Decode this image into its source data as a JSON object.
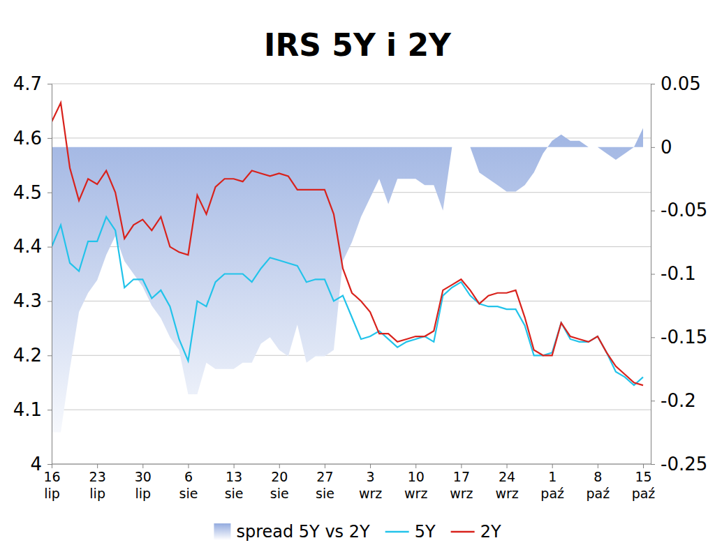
{
  "chart_data": {
    "type": "line",
    "title": "IRS 5Y i 2Y",
    "categories": [
      "16 lip",
      null,
      null,
      null,
      null,
      "23 lip",
      null,
      null,
      null,
      null,
      "30 lip",
      null,
      null,
      null,
      null,
      "6 sie",
      null,
      null,
      null,
      null,
      "13 sie",
      null,
      null,
      null,
      null,
      "20 sie",
      null,
      null,
      null,
      null,
      "27 sie",
      null,
      null,
      null,
      null,
      "3 wrz",
      null,
      null,
      null,
      null,
      "10 wrz",
      null,
      null,
      null,
      null,
      "17 wrz",
      null,
      null,
      null,
      null,
      "24 wrz",
      null,
      null,
      null,
      null,
      "1 paź",
      null,
      null,
      null,
      null,
      "8 paź",
      null,
      null,
      null,
      null,
      "15 paź"
    ],
    "series": [
      {
        "name": "spread 5Y vs 2Y",
        "type": "area",
        "axis": "y2",
        "color": "#93abdf",
        "values": [
          -0.225,
          -0.225,
          -0.175,
          -0.13,
          -0.115,
          -0.105,
          -0.085,
          -0.07,
          -0.09,
          -0.1,
          -0.11,
          -0.125,
          -0.135,
          -0.15,
          -0.16,
          -0.195,
          -0.195,
          -0.17,
          -0.175,
          -0.175,
          -0.175,
          -0.17,
          -0.17,
          -0.155,
          -0.15,
          -0.16,
          -0.165,
          -0.14,
          -0.17,
          -0.165,
          -0.165,
          -0.16,
          -0.09,
          -0.075,
          -0.055,
          -0.04,
          -0.025,
          -0.045,
          -0.025,
          -0.025,
          -0.025,
          -0.03,
          -0.03,
          -0.05,
          0,
          0,
          0,
          -0.02,
          -0.025,
          -0.03,
          -0.035,
          -0.035,
          -0.03,
          -0.02,
          -0.005,
          0.005,
          0.01,
          0.005,
          0.005,
          0,
          0,
          -0.005,
          -0.01,
          -0.005,
          0,
          0.015
        ]
      },
      {
        "name": "5Y",
        "type": "line",
        "color": "#22c3ea",
        "values": [
          4.4,
          4.44,
          4.37,
          4.355,
          4.41,
          4.41,
          4.455,
          4.43,
          4.325,
          4.34,
          4.34,
          4.305,
          4.32,
          4.29,
          4.23,
          4.19,
          4.3,
          4.29,
          4.335,
          4.35,
          4.35,
          4.35,
          4.335,
          4.36,
          4.38,
          4.375,
          4.37,
          4.365,
          4.335,
          4.34,
          4.34,
          4.3,
          4.31,
          4.27,
          4.23,
          4.235,
          4.245,
          4.23,
          4.215,
          4.225,
          4.23,
          4.235,
          4.225,
          4.31,
          4.325,
          4.335,
          4.31,
          4.295,
          4.29,
          4.29,
          4.285,
          4.285,
          4.255,
          4.2,
          4.2,
          4.205,
          4.26,
          4.23,
          4.225,
          4.225,
          4.235,
          4.205,
          4.17,
          4.16,
          4.145,
          4.16
        ]
      },
      {
        "name": "2Y",
        "type": "line",
        "color": "#d8221c",
        "values": [
          4.63,
          4.665,
          4.545,
          4.485,
          4.525,
          4.515,
          4.54,
          4.5,
          4.415,
          4.44,
          4.45,
          4.43,
          4.455,
          4.4,
          4.39,
          4.385,
          4.495,
          4.46,
          4.51,
          4.525,
          4.525,
          4.52,
          4.54,
          4.535,
          4.53,
          4.535,
          4.53,
          4.505,
          4.505,
          4.505,
          4.505,
          4.46,
          4.36,
          4.315,
          4.3,
          4.28,
          4.24,
          4.24,
          4.225,
          4.23,
          4.235,
          4.235,
          4.245,
          4.32,
          4.33,
          4.34,
          4.32,
          4.295,
          4.31,
          4.315,
          4.315,
          4.32,
          4.27,
          4.21,
          4.2,
          4.2,
          4.26,
          4.235,
          4.23,
          4.225,
          4.235,
          4.205,
          4.18,
          4.165,
          4.15,
          4.145
        ]
      }
    ],
    "ylim": [
      4,
      4.7
    ],
    "yticks": [
      4,
      4.1,
      4.2,
      4.3,
      4.4,
      4.5,
      4.6,
      4.7
    ],
    "y2lim": [
      -0.25,
      0.05
    ],
    "y2ticks": [
      0.05,
      0,
      -0.05,
      -0.1,
      -0.15,
      -0.2,
      -0.25
    ],
    "grid": true,
    "legend": "bottom"
  }
}
